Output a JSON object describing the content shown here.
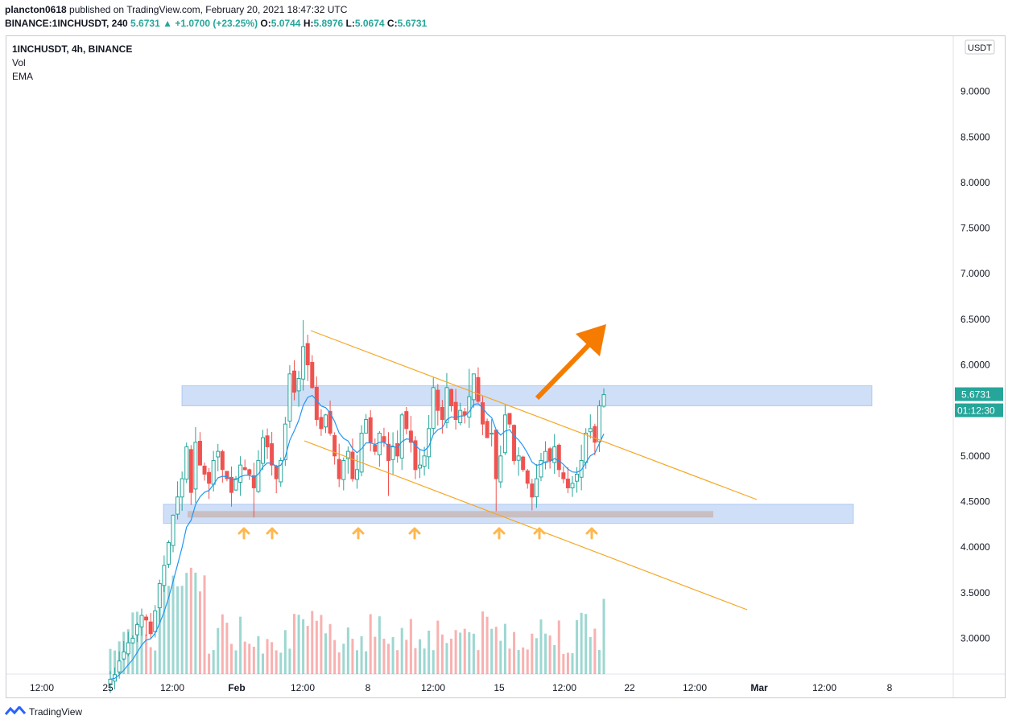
{
  "header": {
    "publisher": "plancton0618",
    "published_text": "published on TradingView.com, February 20, 2021 18:47:32 UTC",
    "symbol_line": "BINANCE:1INCHUSDT, 240",
    "last": "5.6731",
    "change": "+1.0700 (+23.25%)",
    "o_label": "O:",
    "o": "5.0744",
    "h_label": "H:",
    "h": "5.8976",
    "l_label": "L:",
    "l": "5.0674",
    "c_label": "C:",
    "c": "5.6731"
  },
  "legend": {
    "title": "1INCHUSDT, 4h, BINANCE",
    "vol": "Vol",
    "ema": "EMA"
  },
  "currency_badge": "USDT",
  "price_badge": "5.6731",
  "countdown_badge": "01:12:30",
  "footer": {
    "brand": "TradingView"
  },
  "colors": {
    "up": "#26a69a",
    "down": "#ef5350",
    "ema": "#2196f3",
    "zone": "#9fc0f0",
    "channel": "#f5a623",
    "arrow": "#f57c00",
    "support_line": "#c8b8b8"
  },
  "chart_data": {
    "type": "candlestick",
    "y_ticks": [
      "9.0000",
      "8.5000",
      "8.0000",
      "7.5000",
      "7.0000",
      "6.5000",
      "6.0000",
      "5.5000",
      "5.0000",
      "4.5000",
      "4.0000",
      "3.5000",
      "3.0000"
    ],
    "x_ticks": [
      "12:00",
      "25",
      "12:00",
      "Feb",
      "12:00",
      "8",
      "12:00",
      "15",
      "12:00",
      "22",
      "12:00",
      "Mar",
      "12:00",
      "8"
    ],
    "ylim": [
      2.6,
      9.5
    ],
    "last_price": 5.6731,
    "series_candles_description": "approximate 4h candles late January – February 20, 2021",
    "closes": [
      2.55,
      2.6,
      2.75,
      2.85,
      2.95,
      3.0,
      3.15,
      3.25,
      3.2,
      3.05,
      3.3,
      3.6,
      3.8,
      4.05,
      4.35,
      4.55,
      4.75,
      5.1,
      4.6,
      5.15,
      4.9,
      4.8,
      4.7,
      4.95,
      5.05,
      4.85,
      4.75,
      4.6,
      4.75,
      4.9,
      4.85,
      4.8,
      4.65,
      4.95,
      5.2,
      5.1,
      4.9,
      4.75,
      4.95,
      5.35,
      5.9,
      5.7,
      5.85,
      6.2,
      6.0,
      5.75,
      5.4,
      5.3,
      5.45,
      5.25,
      5.0,
      4.75,
      4.95,
      5.05,
      4.75,
      4.85,
      5.25,
      5.4,
      5.15,
      5.05,
      5.25,
      5.15,
      4.95,
      5.1,
      5.0,
      5.45,
      5.3,
      5.15,
      4.85,
      4.9,
      5.0,
      5.3,
      5.75,
      5.5,
      5.4,
      5.75,
      5.55,
      5.4,
      5.5,
      5.45,
      5.65,
      5.9,
      5.6,
      5.35,
      5.2,
      5.25,
      4.75,
      5.0,
      5.45,
      5.35,
      4.95,
      5.0,
      4.85,
      4.7,
      4.55,
      4.75,
      4.95,
      5.05,
      4.95,
      5.1,
      4.85,
      4.75,
      4.65,
      4.7,
      4.8,
      4.95,
      5.25,
      5.3,
      5.15,
      5.55,
      5.673
    ],
    "volume_note": "volume bars shown below price, scaled relative"
  },
  "annotations": {
    "resistance_zone": [
      5.55,
      5.77
    ],
    "support_zone": [
      4.26,
      4.47
    ],
    "support_line": 4.36,
    "arrow_up_marks": 7
  }
}
